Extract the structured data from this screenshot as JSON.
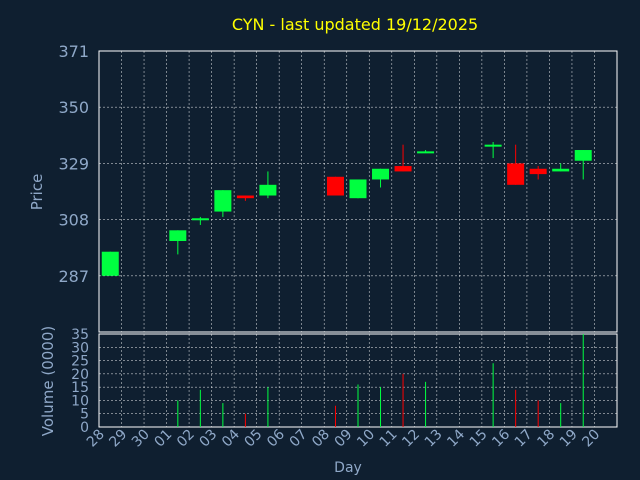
{
  "colors": {
    "background": "#0f1f30",
    "title": "#ffff00",
    "axis_text": "#8fa8c8",
    "up": "#00ff40",
    "down": "#ff0000",
    "grid": "#ffffff",
    "frame": "#ffffff"
  },
  "chart_data": [
    {
      "type": "candlestick",
      "title": "CYN - last updated 19/12/2025",
      "ylabel": "Price",
      "ylim": [
        266,
        371
      ],
      "yticks": [
        287,
        308,
        329,
        350,
        371
      ],
      "grid": true,
      "x_labels": [
        "28",
        "29",
        "30",
        "01",
        "02",
        "03",
        "04",
        "05",
        "06",
        "07",
        "08",
        "09",
        "10",
        "11",
        "12",
        "13",
        "14",
        "15",
        "16",
        "17",
        "18",
        "19",
        "20"
      ],
      "candles": [
        {
          "day": "28",
          "open": 287,
          "close": 296,
          "high": 296,
          "low": 287
        },
        {
          "day": "01",
          "open": 300,
          "close": 304,
          "high": 304,
          "low": 295
        },
        {
          "day": "02",
          "open": 308,
          "close": 308.5,
          "high": 309,
          "low": 306
        },
        {
          "day": "03",
          "open": 311,
          "close": 319,
          "high": 319,
          "low": 309
        },
        {
          "day": "04",
          "open": 317,
          "close": 316,
          "high": 317,
          "low": 315
        },
        {
          "day": "05",
          "open": 317,
          "close": 321,
          "high": 326,
          "low": 316
        },
        {
          "day": "08",
          "open": 324,
          "close": 317,
          "high": 324,
          "low": 317
        },
        {
          "day": "09",
          "open": 316,
          "close": 323,
          "high": 323,
          "low": 316
        },
        {
          "day": "10",
          "open": 323,
          "close": 327,
          "high": 327,
          "low": 320
        },
        {
          "day": "11",
          "open": 328,
          "close": 326,
          "high": 336,
          "low": 326
        },
        {
          "day": "12",
          "open": 333,
          "close": 333.5,
          "high": 334,
          "low": 333
        },
        {
          "day": "15",
          "open": 335.5,
          "close": 336,
          "high": 337,
          "low": 331
        },
        {
          "day": "16",
          "open": 329,
          "close": 321,
          "high": 336,
          "low": 321
        },
        {
          "day": "17",
          "open": 327,
          "close": 325,
          "high": 328,
          "low": 323
        },
        {
          "day": "18",
          "open": 326,
          "close": 327,
          "high": 329,
          "low": 326
        },
        {
          "day": "19",
          "open": 330,
          "close": 334,
          "high": 334,
          "low": 323
        }
      ]
    },
    {
      "type": "bar",
      "ylabel": "Volume (0000)",
      "xlabel": "Day",
      "ylim": [
        0,
        35
      ],
      "yticks": [
        0,
        5,
        10,
        15,
        20,
        25,
        30,
        35
      ],
      "grid": true,
      "x_labels": [
        "28",
        "29",
        "30",
        "01",
        "02",
        "03",
        "04",
        "05",
        "06",
        "07",
        "08",
        "09",
        "10",
        "11",
        "12",
        "13",
        "14",
        "15",
        "16",
        "17",
        "18",
        "19",
        "20"
      ],
      "bars": [
        {
          "day": "01",
          "value": 10,
          "color": "up"
        },
        {
          "day": "02",
          "value": 14,
          "color": "up"
        },
        {
          "day": "03",
          "value": 9,
          "color": "up"
        },
        {
          "day": "04",
          "value": 5,
          "color": "down"
        },
        {
          "day": "05",
          "value": 15,
          "color": "up"
        },
        {
          "day": "08",
          "value": 8,
          "color": "down"
        },
        {
          "day": "09",
          "value": 16,
          "color": "up"
        },
        {
          "day": "10",
          "value": 15,
          "color": "up"
        },
        {
          "day": "11",
          "value": 20,
          "color": "down"
        },
        {
          "day": "12",
          "value": 17,
          "color": "up"
        },
        {
          "day": "15",
          "value": 24,
          "color": "up"
        },
        {
          "day": "16",
          "value": 14,
          "color": "down"
        },
        {
          "day": "17",
          "value": 10,
          "color": "down"
        },
        {
          "day": "18",
          "value": 9,
          "color": "up"
        },
        {
          "day": "19",
          "value": 35,
          "color": "up"
        }
      ]
    }
  ]
}
